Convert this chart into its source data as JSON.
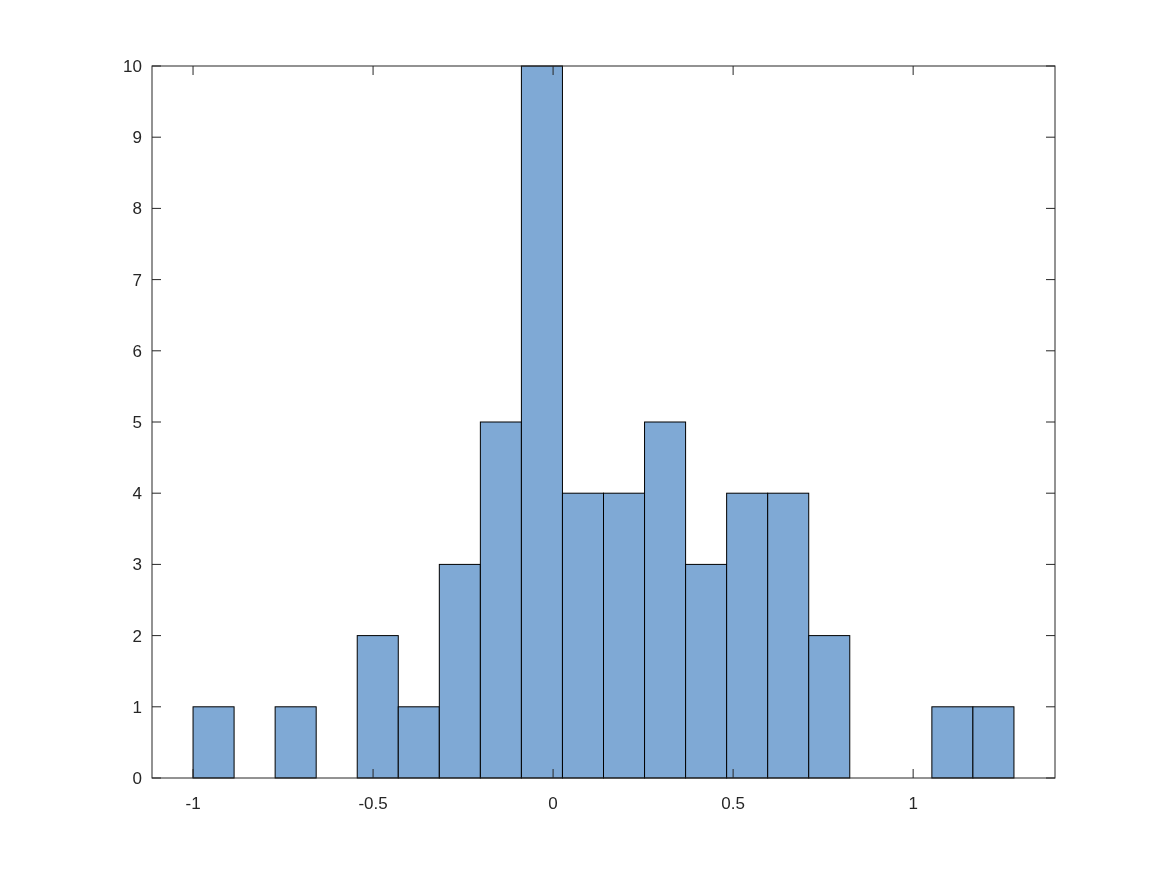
{
  "chart_data": {
    "type": "histogram",
    "bins": [
      -1,
      -0.886,
      -0.772,
      -0.658,
      -0.544,
      -0.43,
      -0.316,
      -0.202,
      -0.088,
      0.026,
      0.14,
      0.254,
      0.368,
      0.482,
      0.596,
      0.71,
      0.824,
      0.938,
      1.052,
      1.166,
      1.28
    ],
    "values": [
      1,
      0,
      1,
      0,
      2,
      1,
      3,
      5,
      10,
      4,
      4,
      5,
      3,
      4,
      4,
      2,
      0,
      0,
      1,
      1
    ],
    "color": "#7fa9d5",
    "xlim": [
      -1.114,
      1.394
    ],
    "xticks": [
      -1,
      -0.5,
      0,
      0.5,
      1
    ],
    "ylim": [
      0,
      10
    ],
    "yticks": [
      0,
      1,
      2,
      3,
      4,
      5,
      6,
      7,
      8,
      9,
      10
    ],
    "grid": false
  }
}
